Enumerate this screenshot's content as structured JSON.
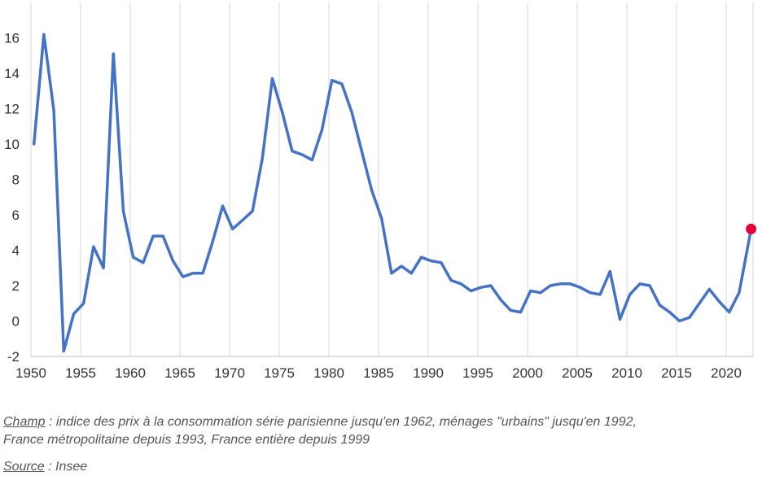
{
  "chart_data": {
    "type": "line",
    "title": "",
    "xlabel": "",
    "ylabel": "",
    "xlim": [
      1950,
      2022.7
    ],
    "ylim": [
      -2,
      18
    ],
    "x_ticks": [
      1950,
      1955,
      1960,
      1965,
      1970,
      1975,
      1980,
      1985,
      1990,
      1995,
      2000,
      2005,
      2010,
      2015,
      2020
    ],
    "y_ticks": [
      -2,
      0,
      2,
      4,
      6,
      8,
      10,
      12,
      14,
      16
    ],
    "grid": "vertical",
    "legend": "none",
    "line_color": "#4472c4",
    "highlight_color": "#e4003a",
    "highlight_point": {
      "x": 2022.5,
      "y": 5.2
    },
    "series": [
      {
        "x": [
          1950.3,
          1951.3,
          1952.3,
          1953.3,
          1954.3,
          1955.3,
          1956.3,
          1957.3,
          1958.3,
          1959.3,
          1960.3,
          1961.3,
          1962.3,
          1963.3,
          1964.3,
          1965.3,
          1966.3,
          1967.3,
          1968.3,
          1969.3,
          1970.3,
          1971.3,
          1972.3,
          1973.3,
          1974.3,
          1975.3,
          1976.3,
          1977.3,
          1978.3,
          1979.3,
          1980.3,
          1981.3,
          1982.3,
          1983.3,
          1984.3,
          1985.3,
          1986.3,
          1987.3,
          1988.3,
          1989.3,
          1990.3,
          1991.3,
          1992.3,
          1993.3,
          1994.3,
          1995.3,
          1996.3,
          1997.3,
          1998.3,
          1999.3,
          2000.3,
          2001.3,
          2002.3,
          2003.3,
          2004.3,
          2005.3,
          2006.3,
          2007.3,
          2008.3,
          2009.3,
          2010.3,
          2011.3,
          2012.3,
          2013.3,
          2014.3,
          2015.3,
          2016.3,
          2017.3,
          2018.3,
          2019.3,
          2020.3,
          2021.3,
          2022.5
        ],
        "values": [
          10.0,
          16.2,
          11.9,
          -1.7,
          0.4,
          1.0,
          4.2,
          3.0,
          15.1,
          6.2,
          3.6,
          3.3,
          4.8,
          4.8,
          3.4,
          2.5,
          2.7,
          2.7,
          4.5,
          6.5,
          5.2,
          5.7,
          6.2,
          9.2,
          13.7,
          11.8,
          9.6,
          9.4,
          9.1,
          10.8,
          13.6,
          13.4,
          11.8,
          9.6,
          7.4,
          5.8,
          2.7,
          3.1,
          2.7,
          3.6,
          3.4,
          3.3,
          2.3,
          2.1,
          1.7,
          1.9,
          2.0,
          1.2,
          0.6,
          0.5,
          1.7,
          1.6,
          2.0,
          2.1,
          2.1,
          1.9,
          1.6,
          1.5,
          2.8,
          0.1,
          1.5,
          2.1,
          2.0,
          0.9,
          0.5,
          0.0,
          0.2,
          1.0,
          1.8,
          1.1,
          0.5,
          1.6,
          5.2
        ]
      }
    ]
  },
  "notes": {
    "champ_label": "Champ",
    "champ_text_line1": " : indice des prix à la consommation série parisienne jusqu'en 1962, ménages \"urbains\" jusqu'en 1992,",
    "champ_text_line2": "France métropolitaine depuis 1993, France entière depuis 1999",
    "source_label": "Source",
    "source_text": " : Insee"
  }
}
